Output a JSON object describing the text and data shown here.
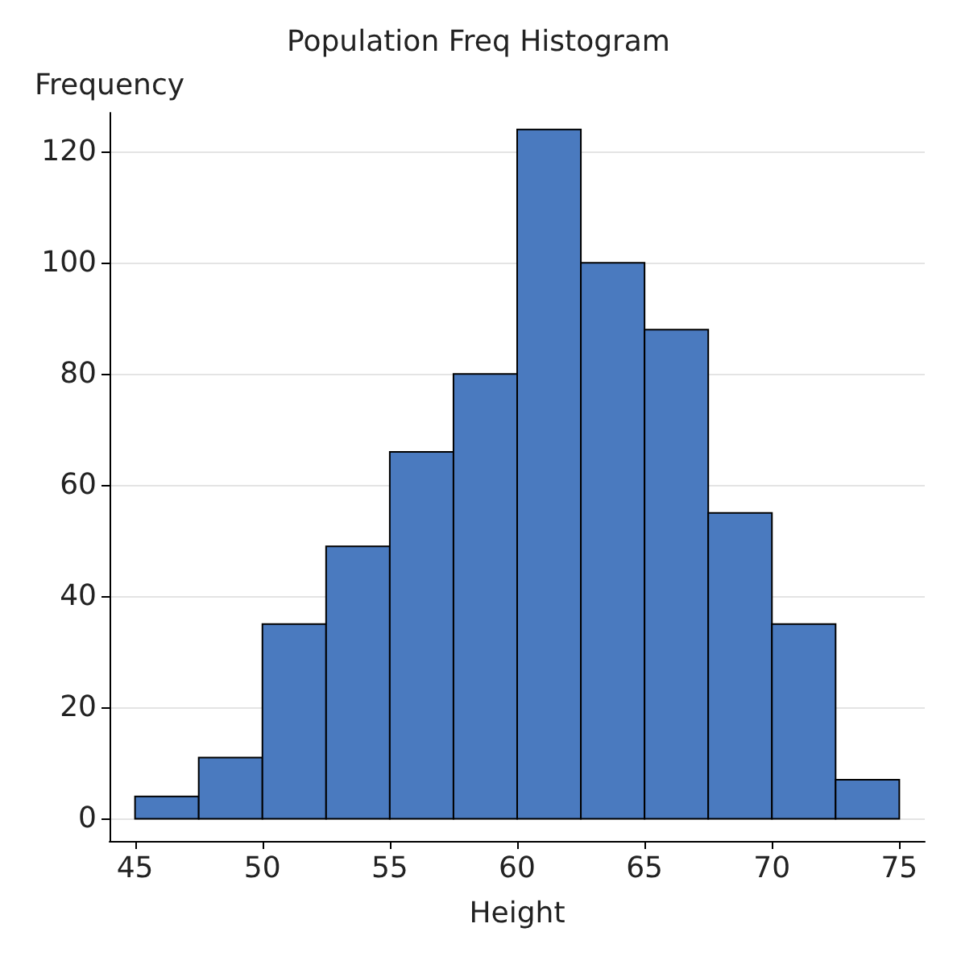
{
  "chart_data": {
    "type": "histogram",
    "title": "Population Freq Histogram",
    "xlabel": "Height",
    "ylabel": "Frequency",
    "bins": [
      45,
      47.5,
      50,
      52.5,
      55,
      57.5,
      60,
      62.5,
      65,
      67.5,
      70,
      72.5,
      75
    ],
    "values": [
      4,
      11,
      35,
      49,
      66,
      80,
      124,
      100,
      88,
      55,
      35,
      7
    ],
    "color": "#4a7abf",
    "xlim": [
      44,
      76
    ],
    "ylim": [
      -4,
      127
    ],
    "xticks": [
      45,
      50,
      55,
      60,
      65,
      70,
      75
    ],
    "yticks": [
      0,
      20,
      40,
      60,
      80,
      100,
      120
    ],
    "grid": "y"
  }
}
